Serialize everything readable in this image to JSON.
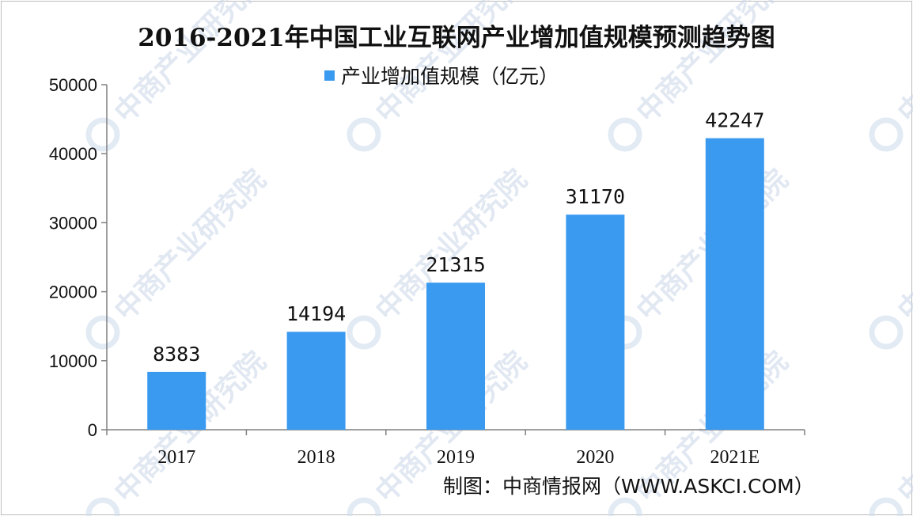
{
  "title": "2016-2021年中国工业互联网产业增加值规模预测趋势图",
  "legend_label": "产业增加值规模（亿元）",
  "credit": "制图：中商情报网（WWW.ASKCI.COM）",
  "watermark": "中商产业研究院",
  "colors": {
    "bar": "#3a9af0",
    "axis": "#808080",
    "text": "#111111"
  },
  "chart_data": {
    "type": "bar",
    "title": "2016-2021年中国工业互联网产业增加值规模预测趋势图",
    "categories": [
      "2017",
      "2018",
      "2019",
      "2020",
      "2021E"
    ],
    "series": [
      {
        "name": "产业增加值规模（亿元）",
        "values": [
          8383,
          14194,
          21315,
          31170,
          42247
        ]
      }
    ],
    "ylim": [
      0,
      50000
    ],
    "yticks": [
      "0",
      "10000",
      "20000",
      "30000",
      "40000",
      "50000"
    ],
    "data_labels": [
      "8383",
      "14194",
      "21315",
      "31170",
      "42247"
    ],
    "legend_position": "top-center",
    "grid": false
  }
}
